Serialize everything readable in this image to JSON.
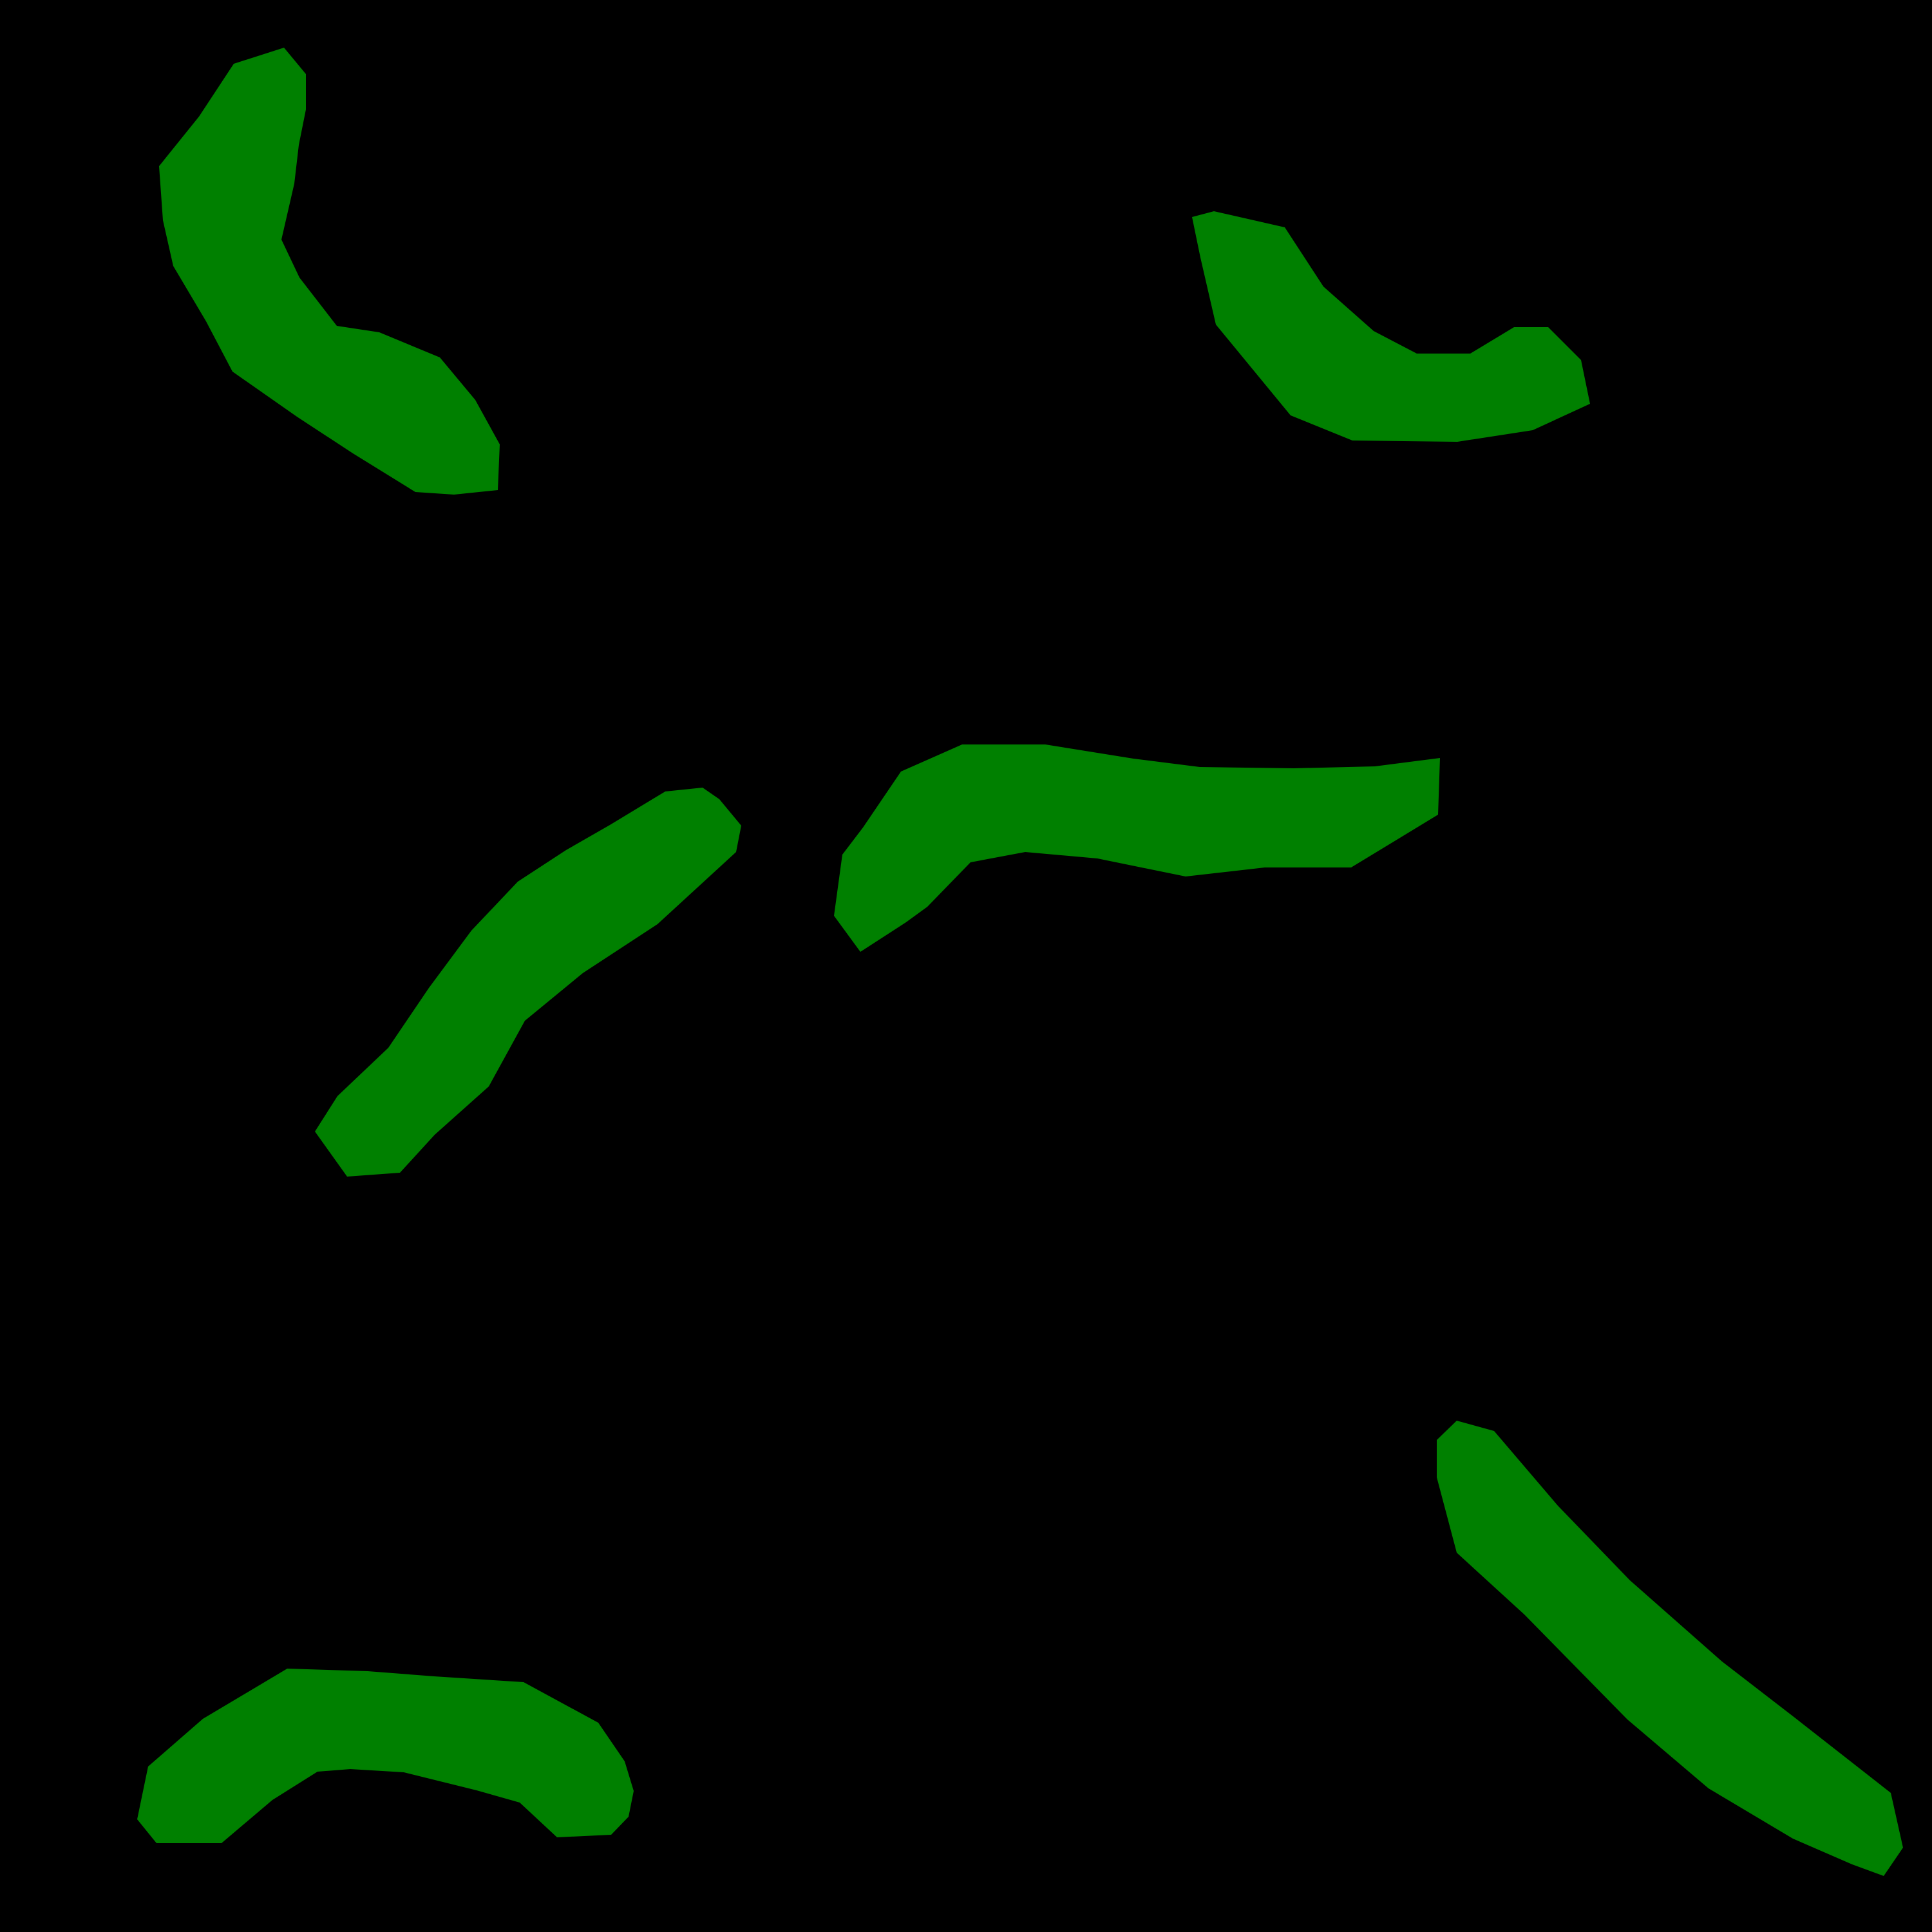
{
  "colors": {
    "background": "#000000",
    "shape_fill": "#008000"
  }
}
